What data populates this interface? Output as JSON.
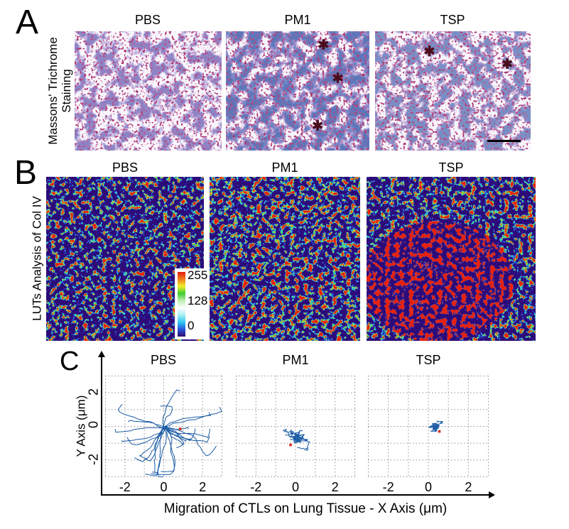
{
  "figure_bg": "#ffffff",
  "panelA": {
    "letter": "A",
    "side_label_line1": "Massons' Trichrome",
    "side_label_line2": "Staining",
    "titles": [
      "PBS",
      "PM1",
      "TSP"
    ],
    "asterisk_glyph": "✱",
    "asterisk_color": "#4a0d1c",
    "asterisks": {
      "pm1": [
        [
          0.68,
          0.12
        ],
        [
          0.78,
          0.4
        ],
        [
          0.64,
          0.8
        ]
      ],
      "tsp": [
        [
          0.35,
          0.17
        ],
        [
          0.85,
          0.28
        ]
      ]
    },
    "scalebar_color": "#000000",
    "stain_palette": [
      "#f8f7fd",
      "#c6bfe4",
      "#8d85c8",
      "#6f8cc8",
      "#d4619c"
    ]
  },
  "panelB": {
    "letter": "B",
    "side_label": "LUTs Analysis of Col IV",
    "titles": [
      "PBS",
      "PM1",
      "TSP"
    ],
    "heatmap_bg": "#2d0b78",
    "lut_palette": [
      "#2b3fd0",
      "#31d6e6",
      "#44e03a",
      "#eed62a",
      "#f0591e",
      "#e6200e"
    ],
    "colorbar": {
      "label_max": "255",
      "label_mid": "128",
      "label_min": "0",
      "gradient": [
        "#e01c10",
        "#f07c1c",
        "#f2ee2e",
        "#3ecc30",
        "#bfeeb4",
        "#ffffff",
        "#a8eef2",
        "#2cc8f2",
        "#2753dc",
        "#33096e"
      ]
    }
  },
  "panelC": {
    "letter": "C",
    "ylabel": "Y Axis (μm)",
    "xlabel": "Migration of CTLs on Lung Tissue - X Axis (μm)",
    "ytick_labels": [
      "2",
      "0",
      "-2"
    ]
  },
  "chart_data": [
    {
      "type": "tracks",
      "panel": "pbs",
      "title": "PBS",
      "xlim": [
        -3,
        3
      ],
      "ylim": [
        -3,
        3
      ],
      "xticks": [
        -2,
        0,
        2
      ],
      "yticks": [
        2,
        0,
        -2
      ],
      "grid": "dotted",
      "grid_color": "#909090",
      "n_tracks": 26,
      "persistence": 0.82,
      "spread_x": 3.0,
      "spread_y": 2.7,
      "origin": [
        0.05,
        -0.05
      ],
      "red_marker": [
        0.85,
        -0.15
      ],
      "track_color": "#1c5ca5",
      "marker_color": "#d03020",
      "seed": 42,
      "description": "Long migration tracks radiating from origin, displacement up to ~3 μm"
    },
    {
      "type": "tracks",
      "panel": "pm1",
      "title": "PM1",
      "xlim": [
        -3,
        3
      ],
      "ylim": [
        -3,
        3
      ],
      "xticks": [
        -2,
        0,
        2
      ],
      "yticks": [
        2,
        0,
        -2
      ],
      "grid": "dotted",
      "grid_color": "#909090",
      "n_tracks": 15,
      "persistence": 0.3,
      "spread_x": 1.15,
      "spread_y": 1.05,
      "origin": [
        0.1,
        -0.65
      ],
      "red_marker": [
        -0.25,
        -1.1
      ],
      "track_color": "#1c5ca5",
      "marker_color": "#d03020",
      "seed": 77,
      "description": "Confined cluster of short tracks, displacement ~1 μm, below origin"
    },
    {
      "type": "tracks",
      "panel": "tsp",
      "title": "TSP",
      "xlim": [
        -3,
        3
      ],
      "ylim": [
        -3,
        3
      ],
      "xticks": [
        -2,
        0,
        2
      ],
      "yticks": [
        2,
        0,
        -2
      ],
      "grid": "dotted",
      "grid_color": "#909090",
      "n_tracks": 12,
      "persistence": 0.3,
      "spread_x": 0.95,
      "spread_y": 0.6,
      "origin": [
        0.3,
        -0.05
      ],
      "red_marker": [
        0.55,
        -0.3
      ],
      "track_color": "#1c5ca5",
      "marker_color": "#d03020",
      "seed": 99,
      "description": "Smallest confined cluster of tracks, displacement < 1 μm, near origin"
    }
  ]
}
